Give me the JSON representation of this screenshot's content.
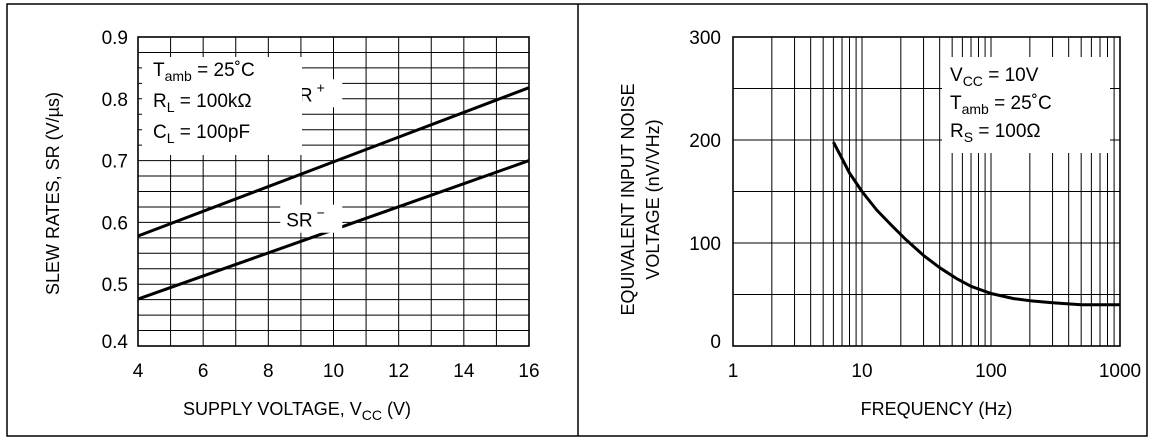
{
  "chart_data": [
    {
      "type": "line",
      "xlabel": {
        "main": "SUPPLY VOLTAGE, V",
        "sub": "CC",
        "tail": "  (V)"
      },
      "ylabel": "SLEW RATES, SR (V/µs)",
      "xlim": [
        4,
        16
      ],
      "ylim": [
        0.4,
        0.9
      ],
      "xticks": [
        "4",
        "6",
        "8",
        "10",
        "12",
        "14",
        "16"
      ],
      "yticks": [
        "0.4",
        "0.5",
        "0.6",
        "0.7",
        "0.8",
        "0.9"
      ],
      "grid": true,
      "conditions": [
        {
          "main": "T",
          "sub": "amb",
          "tail": " = 25˚C"
        },
        {
          "main": "R",
          "sub": "L",
          "tail": " = 100kΩ"
        },
        {
          "main": "C",
          "sub": "L",
          "tail": " = 100pF"
        }
      ],
      "series": [
        {
          "label": "SR",
          "sup": "+",
          "x": [
            4,
            16
          ],
          "y": [
            0.578,
            0.818
          ]
        },
        {
          "label": "SR",
          "sup": "−",
          "x": [
            4,
            16
          ],
          "y": [
            0.476,
            0.7
          ]
        }
      ]
    },
    {
      "type": "line",
      "xlabel": "FREQUENCY (Hz)",
      "ylabel": [
        "EQUIVALENT INPUT NOISE",
        "VOLTAGE (nV/VHz)"
      ],
      "xscale": "log",
      "xlim": [
        1,
        1000
      ],
      "ylim": [
        0,
        300
      ],
      "xticks": [
        "1",
        "10",
        "100",
        "1000"
      ],
      "yticks": [
        "0",
        "100",
        "200",
        "300"
      ],
      "grid": true,
      "conditions": [
        {
          "main": "V",
          "sub": "CC",
          "tail": " = 10V"
        },
        {
          "main": "T",
          "sub": "amb",
          "tail": " = 25˚C"
        },
        {
          "main": "R",
          "sub": "S",
          "tail": " = 100Ω"
        }
      ],
      "series": [
        {
          "x": [
            6,
            7,
            8,
            10,
            13,
            17,
            22,
            30,
            40,
            55,
            70,
            100,
            150,
            200,
            300,
            500,
            700,
            1000
          ],
          "y": [
            198,
            182,
            168,
            150,
            132,
            117,
            103,
            88,
            76,
            65,
            58,
            51,
            46,
            44,
            42,
            40,
            40,
            40
          ]
        }
      ]
    }
  ]
}
